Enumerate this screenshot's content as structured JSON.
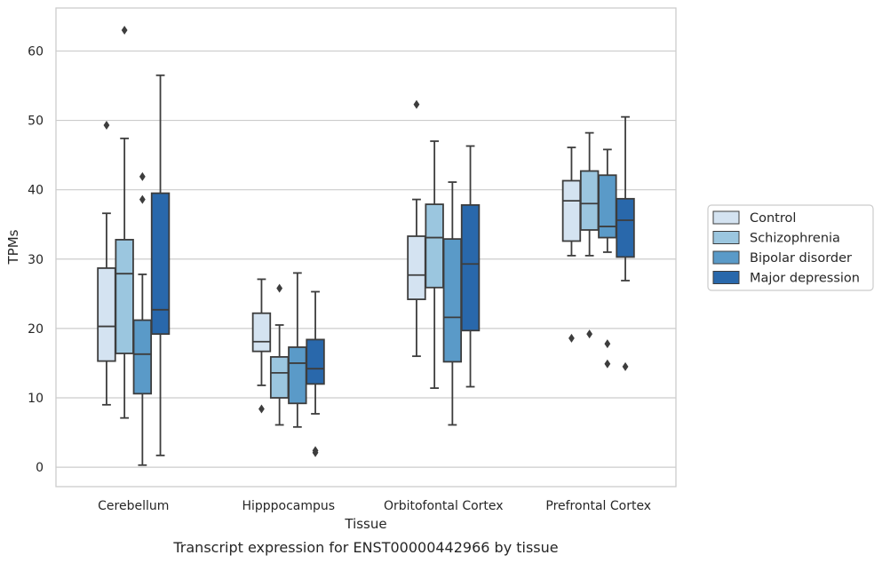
{
  "caption": "Transcript expression for ENST00000442966 by tissue",
  "chart_data": {
    "type": "box",
    "xlabel": "Tissue",
    "ylabel": "TPMs",
    "ylim": [
      -2.8,
      66.2
    ],
    "yticks": [
      0,
      10,
      20,
      30,
      40,
      50,
      60
    ],
    "grid": "horizontal",
    "legend_position": "right",
    "categories": [
      "Cerebellum",
      "Hipppocampus",
      "Orbitofontal Cortex",
      "Prefrontal Cortex"
    ],
    "series": [
      {
        "name": "Control",
        "color": "#d4e3f1",
        "boxes": [
          {
            "whisker_low": 9.0,
            "q1": 15.3,
            "median": 20.3,
            "q3": 28.7,
            "whisker_high": 36.6,
            "outliers": [
              49.3
            ]
          },
          {
            "whisker_low": 11.8,
            "q1": 16.7,
            "median": 18.1,
            "q3": 22.2,
            "whisker_high": 27.1,
            "outliers": [
              8.4
            ]
          },
          {
            "whisker_low": 16.0,
            "q1": 24.2,
            "median": 27.7,
            "q3": 33.3,
            "whisker_high": 38.6,
            "outliers": [
              52.3
            ]
          },
          {
            "whisker_low": 30.5,
            "q1": 32.6,
            "median": 38.4,
            "q3": 41.3,
            "whisker_high": 46.1,
            "outliers": [
              18.6
            ]
          }
        ]
      },
      {
        "name": "Schizophrenia",
        "color": "#9bc6df",
        "boxes": [
          {
            "whisker_low": 7.1,
            "q1": 16.4,
            "median": 27.9,
            "q3": 32.8,
            "whisker_high": 47.4,
            "outliers": [
              63.0
            ]
          },
          {
            "whisker_low": 6.1,
            "q1": 10.0,
            "median": 13.6,
            "q3": 15.9,
            "whisker_high": 20.5,
            "outliers": [
              25.8
            ]
          },
          {
            "whisker_low": 11.4,
            "q1": 25.9,
            "median": 33.1,
            "q3": 37.9,
            "whisker_high": 47.0,
            "outliers": []
          },
          {
            "whisker_low": 30.5,
            "q1": 34.2,
            "median": 38.0,
            "q3": 42.7,
            "whisker_high": 48.2,
            "outliers": [
              19.2
            ]
          }
        ]
      },
      {
        "name": "Bipolar disorder",
        "color": "#5a9ac8",
        "boxes": [
          {
            "whisker_low": 0.3,
            "q1": 10.6,
            "median": 16.3,
            "q3": 21.2,
            "whisker_high": 27.8,
            "outliers": [
              38.6,
              41.9
            ]
          },
          {
            "whisker_low": 5.8,
            "q1": 9.2,
            "median": 15.0,
            "q3": 17.3,
            "whisker_high": 28.0,
            "outliers": []
          },
          {
            "whisker_low": 6.1,
            "q1": 15.2,
            "median": 21.6,
            "q3": 32.9,
            "whisker_high": 41.1,
            "outliers": []
          },
          {
            "whisker_low": 31.0,
            "q1": 33.1,
            "median": 34.7,
            "q3": 42.1,
            "whisker_high": 45.8,
            "outliers": [
              17.8,
              14.9
            ]
          }
        ]
      },
      {
        "name": "Major depression",
        "color": "#2968ab",
        "boxes": [
          {
            "whisker_low": 1.7,
            "q1": 19.2,
            "median": 22.7,
            "q3": 39.5,
            "whisker_high": 56.5,
            "outliers": []
          },
          {
            "whisker_low": 7.7,
            "q1": 12.0,
            "median": 14.2,
            "q3": 18.4,
            "whisker_high": 25.3,
            "outliers": [
              2.1,
              2.4
            ]
          },
          {
            "whisker_low": 11.6,
            "q1": 19.7,
            "median": 29.3,
            "q3": 37.8,
            "whisker_high": 46.3,
            "outliers": []
          },
          {
            "whisker_low": 26.9,
            "q1": 30.3,
            "median": 35.6,
            "q3": 38.7,
            "whisker_high": 50.5,
            "outliers": [
              14.5
            ]
          }
        ]
      }
    ]
  }
}
